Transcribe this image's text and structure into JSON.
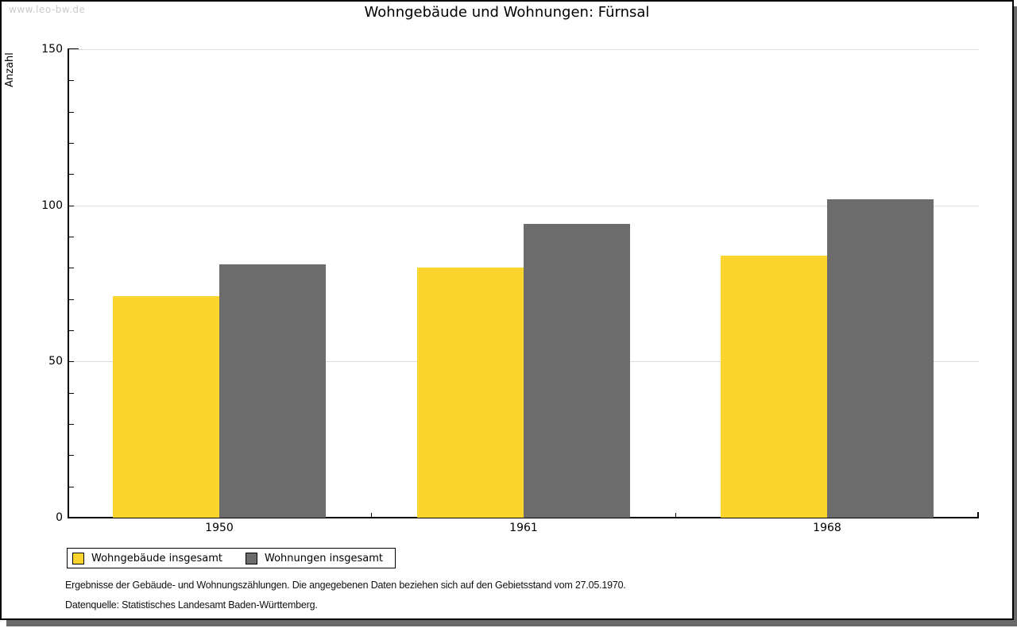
{
  "watermark": "www.leo-bw.de",
  "title": "Wohngebäude und Wohnungen: Fürnsal",
  "chart_data": {
    "type": "bar",
    "title": "Wohngebäude und Wohnungen: Fürnsal",
    "categories": [
      "1950",
      "1961",
      "1968"
    ],
    "series": [
      {
        "name": "Wohngebäude insgesamt",
        "color": "#FCD42E",
        "values": [
          71,
          80,
          84
        ]
      },
      {
        "name": "Wohnungen insgesamt",
        "color": "#6C6C6C",
        "values": [
          81,
          94,
          102
        ]
      }
    ],
    "xlabel": "",
    "ylabel": "Anzahl",
    "ylim": [
      0,
      150
    ],
    "yticks": [
      0,
      50,
      100,
      150
    ],
    "minor_tick_step": 10,
    "grid": "horizontal",
    "gridline_color": "#DDDDDD",
    "legend_position": "bottom-left",
    "legend_border": true
  },
  "footnotes": [
    "Ergebnisse der Gebäude- und Wohnungszählungen. Die angegebenen Daten beziehen sich auf den Gebietsstand vom 27.05.1970.",
    "Datenquelle: Statistisches Landesamt Baden-Württemberg."
  ],
  "colors": {
    "shadow": "#6A6A6A",
    "frame_border": "#000000",
    "watermark": "#CBCBCB"
  }
}
